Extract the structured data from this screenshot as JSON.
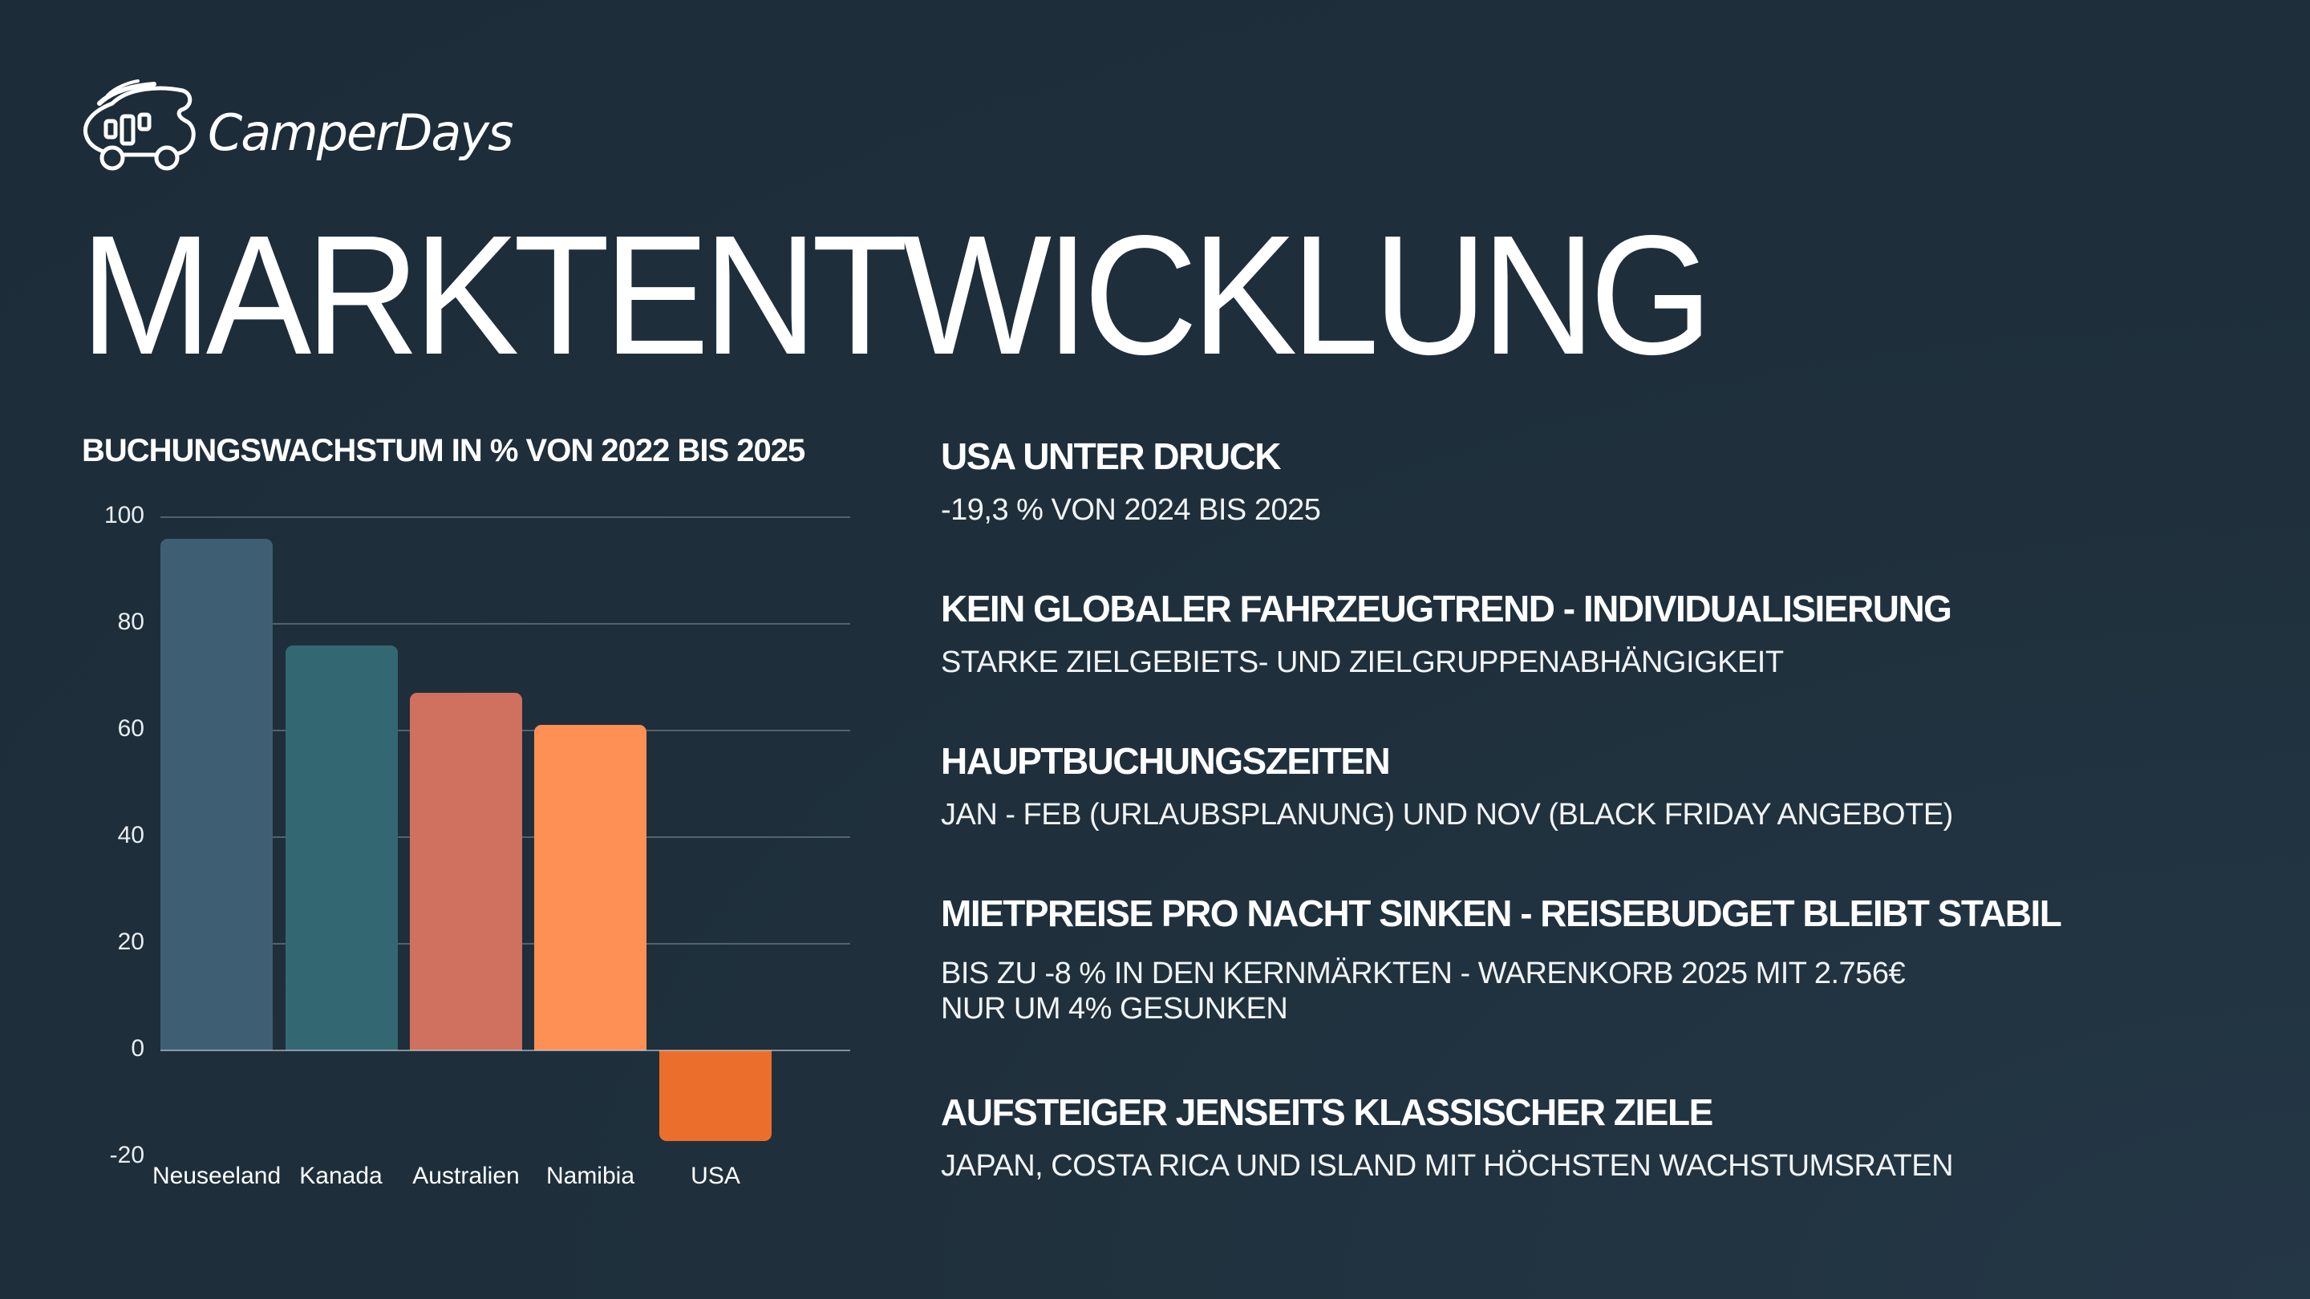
{
  "brand": {
    "logo_icon": "camper-van-icon",
    "name": "CamperDays"
  },
  "page": {
    "title": "MARKTENTWICKLUNG"
  },
  "colors": {
    "background": "#1e2e3a",
    "text": "#ffffff",
    "bar_neuseeland": "#3e5f73",
    "bar_kanada": "#336872",
    "bar_australien": "#d0705e",
    "bar_namibia": "#fe8f55",
    "bar_usa": "#ec6e2d"
  },
  "chart_data": {
    "type": "bar",
    "title": "BUCHUNGSWACHSTUM IN % VON 2022 BIS 2025",
    "xlabel": "",
    "ylabel": "",
    "categories": [
      "Neuseeland",
      "Kanada",
      "Australien",
      "Namibia",
      "USA"
    ],
    "values": [
      96,
      76,
      67,
      61,
      -17
    ],
    "colors": [
      "#3e5f73",
      "#336872",
      "#d0705e",
      "#fe8f55",
      "#ec6e2d"
    ],
    "ylim": [
      -20,
      100
    ],
    "yticks": [
      "100",
      "80",
      "60",
      "40",
      "20",
      "0",
      "-20"
    ],
    "grid": true,
    "legend": "none"
  },
  "facts": [
    {
      "heading": "USA UNTER DRUCK",
      "body": [
        "-19,3 % VON 2024 BIS 2025"
      ]
    },
    {
      "heading": "KEIN GLOBALER FAHRZEUGTREND - INDIVIDUALISIERUNG",
      "body": [
        "STARKE ZIELGEBIETS- UND ZIELGRUPPENABHÄNGIGKEIT"
      ]
    },
    {
      "heading": "HAUPTBUCHUNGSZEITEN",
      "body": [
        "JAN - FEB (URLAUBSPLANUNG) UND NOV (BLACK FRIDAY ANGEBOTE)"
      ]
    },
    {
      "heading": "MIETPREISE PRO NACHT SINKEN - REISEBUDGET BLEIBT STABIL",
      "body": [
        "BIS ZU -8 % IN DEN KERNMÄRKTEN - WARENKORB 2025 MIT 2.756€",
        "NUR UM 4% GESUNKEN"
      ]
    },
    {
      "heading": "AUFSTEIGER JENSEITS KLASSISCHER ZIELE",
      "body": [
        "JAPAN, COSTA RICA UND ISLAND MIT HÖCHSTEN WACHSTUMSRATEN"
      ]
    }
  ]
}
